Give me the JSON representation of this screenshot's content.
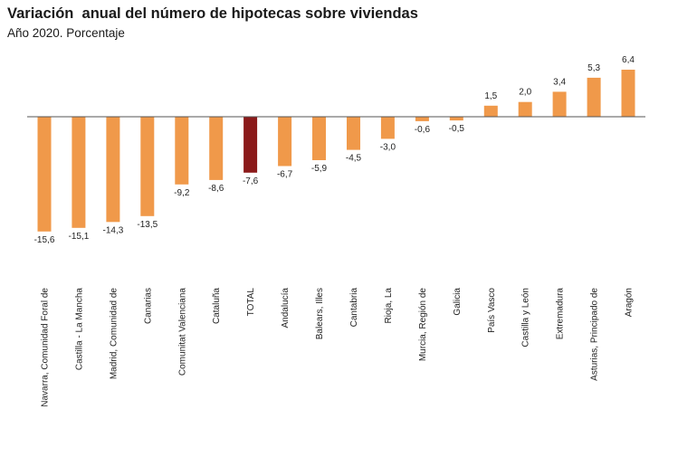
{
  "chart_data": {
    "type": "bar",
    "title": "Variación  anual del número de hipotecas sobre viviendas",
    "subtitle": "Año 2020. Porcentaje",
    "categories": [
      "Navarra, Comunidad Foral de",
      "Castilla - La Mancha",
      "Madrid, Comunidad de",
      "Canarias",
      "Comunitat Valenciana",
      "Cataluña",
      "TOTAL",
      "Andalucía",
      "Balears, Illes",
      "Cantabria",
      "Rioja, La",
      "Murcia, Región de",
      "Galicia",
      "País Vasco",
      "Castilla y León",
      "Extremadura",
      "Asturias, Principado de",
      "Aragón"
    ],
    "values": [
      -15.6,
      -15.1,
      -14.3,
      -13.5,
      -9.2,
      -8.6,
      -7.6,
      -6.7,
      -5.9,
      -4.5,
      -3.0,
      -0.6,
      -0.5,
      1.5,
      2.0,
      3.4,
      5.3,
      6.4
    ],
    "value_labels": [
      "-15,6",
      "-15,1",
      "-14,3",
      "-13,5",
      "-9,2",
      "-8,6",
      "-7,6",
      "-6,7",
      "-5,9",
      "-4,5",
      "-3,0",
      "-0,6",
      "-0,5",
      "1,5",
      "2,0",
      "3,4",
      "5,3",
      "6,4"
    ],
    "highlight_category": "TOTAL",
    "ylim": [
      -16,
      7
    ],
    "grid": false,
    "legend": "none",
    "colors": {
      "bar": "#F0994A",
      "highlight": "#8B1A1A",
      "axis": "#555555"
    }
  }
}
